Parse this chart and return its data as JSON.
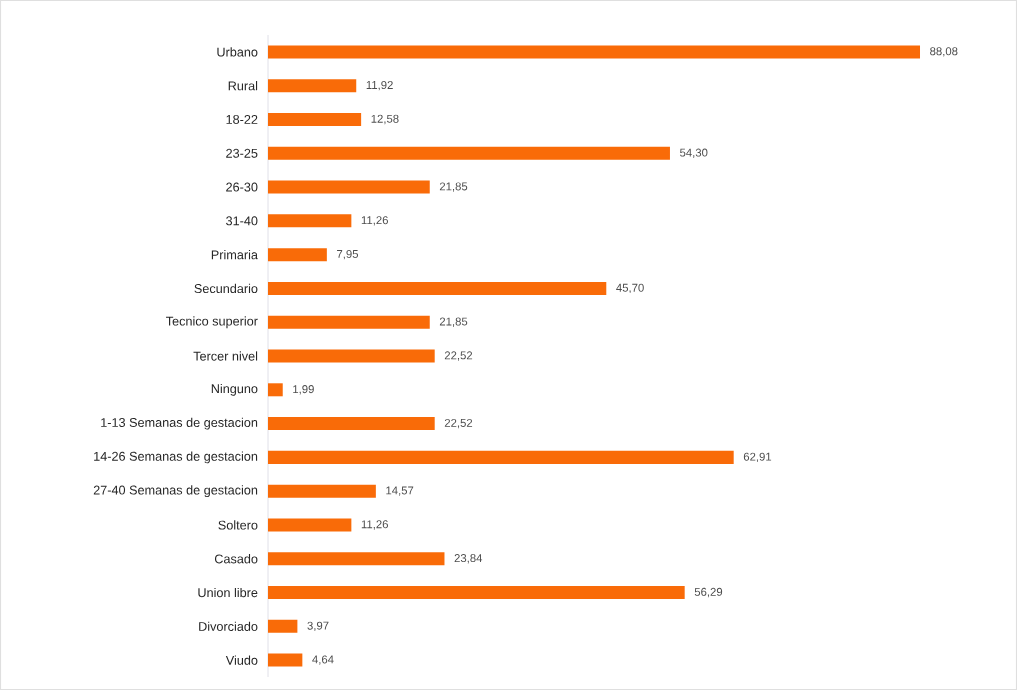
{
  "chart_data": {
    "type": "bar",
    "orientation": "horizontal",
    "color": "#f96b08",
    "categories": [
      "Urbano",
      "Rural",
      "18-22",
      "23-25",
      "26-30",
      "31-40",
      "Primaria",
      "Secundario",
      "Tecnico superior",
      "Tercer nivel",
      "Ninguno",
      "1-13 Semanas de gestacion",
      "14-26 Semanas de gestacion",
      "27-40 Semanas de gestacion",
      "Soltero",
      "Casado",
      "Union libre",
      "Divorciado",
      "Viudo"
    ],
    "values": [
      88.08,
      11.92,
      12.58,
      54.3,
      21.85,
      11.26,
      7.95,
      45.7,
      21.85,
      22.52,
      1.99,
      22.52,
      62.91,
      14.57,
      11.26,
      23.84,
      56.29,
      3.97,
      4.64
    ],
    "value_labels": [
      "88,08",
      "11,92",
      "12,58",
      "54,30",
      "21,85",
      "11,26",
      "7,95",
      "45,70",
      "21,85",
      "22,52",
      "1,99",
      "22,52",
      "62,91",
      "14,57",
      "11,26",
      "23,84",
      "56,29",
      "3,97",
      "4,64"
    ],
    "tick_labels": "y"
  }
}
